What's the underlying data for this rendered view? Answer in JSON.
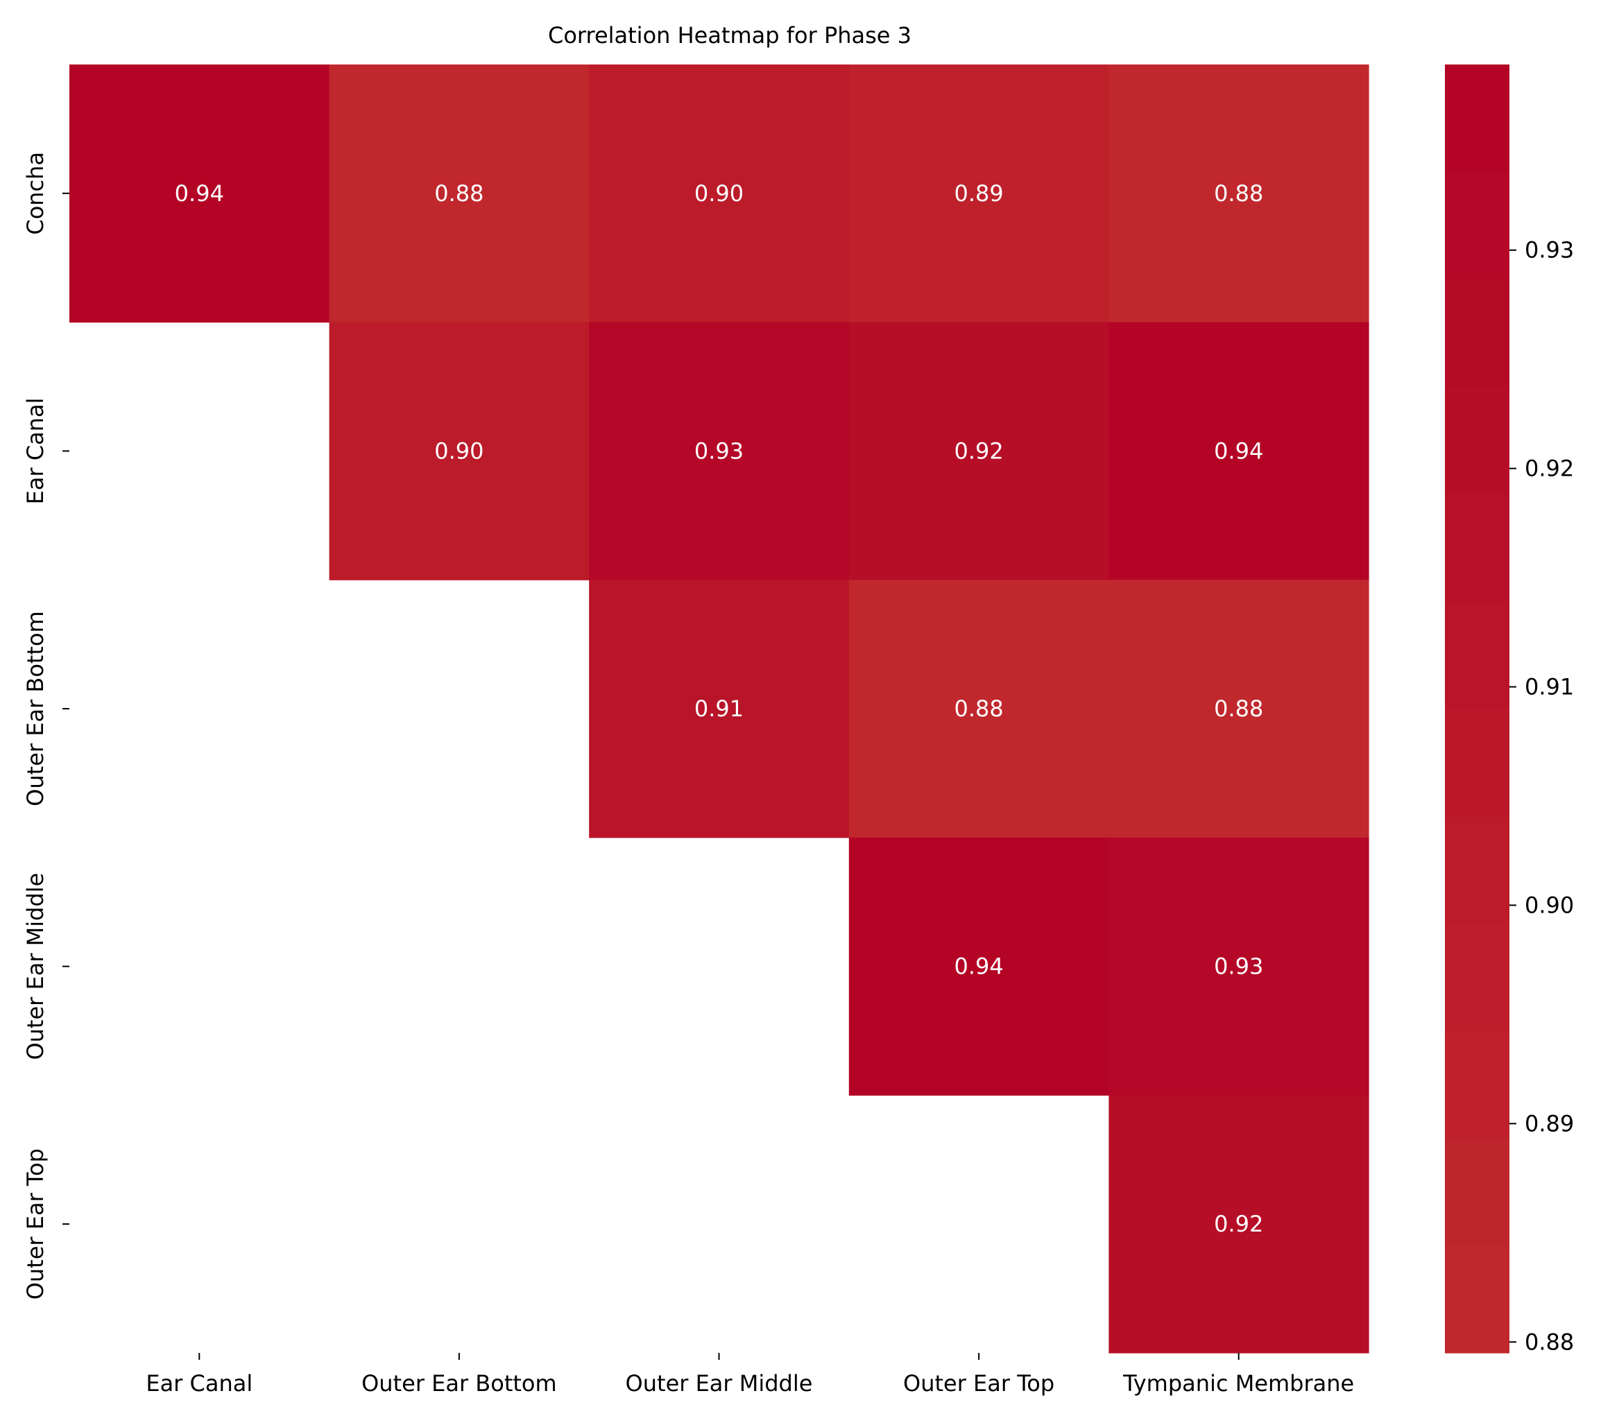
{
  "chart_data": {
    "type": "heatmap",
    "title": "Correlation Heatmap for Phase 3",
    "xlabel": "",
    "ylabel": "",
    "x_categories": [
      "Ear Canal",
      "Outer Ear Bottom",
      "Outer Ear Middle",
      "Outer Ear Top",
      "Tympanic Membrane"
    ],
    "y_categories": [
      "Concha",
      "Ear Canal",
      "Outer Ear Bottom",
      "Outer Ear Middle",
      "Outer Ear Top"
    ],
    "cells": [
      {
        "row": 0,
        "col": 0,
        "value": 0.94,
        "label": "0.94"
      },
      {
        "row": 0,
        "col": 1,
        "value": 0.88,
        "label": "0.88"
      },
      {
        "row": 0,
        "col": 2,
        "value": 0.9,
        "label": "0.90"
      },
      {
        "row": 0,
        "col": 3,
        "value": 0.89,
        "label": "0.89"
      },
      {
        "row": 0,
        "col": 4,
        "value": 0.88,
        "label": "0.88"
      },
      {
        "row": 1,
        "col": 1,
        "value": 0.9,
        "label": "0.90"
      },
      {
        "row": 1,
        "col": 2,
        "value": 0.93,
        "label": "0.93"
      },
      {
        "row": 1,
        "col": 3,
        "value": 0.92,
        "label": "0.92"
      },
      {
        "row": 1,
        "col": 4,
        "value": 0.94,
        "label": "0.94"
      },
      {
        "row": 2,
        "col": 2,
        "value": 0.91,
        "label": "0.91"
      },
      {
        "row": 2,
        "col": 3,
        "value": 0.88,
        "label": "0.88"
      },
      {
        "row": 2,
        "col": 4,
        "value": 0.88,
        "label": "0.88"
      },
      {
        "row": 3,
        "col": 3,
        "value": 0.94,
        "label": "0.94"
      },
      {
        "row": 3,
        "col": 4,
        "value": 0.93,
        "label": "0.93"
      },
      {
        "row": 4,
        "col": 4,
        "value": 0.92,
        "label": "0.92"
      }
    ],
    "colorbar": {
      "range": [
        0.8795,
        0.9385
      ],
      "ticks": [
        0.88,
        0.89,
        0.9,
        0.91,
        0.92,
        0.93
      ],
      "tick_labels": [
        "0.88",
        "0.89",
        "0.90",
        "0.91",
        "0.92",
        "0.93"
      ],
      "bands": 12,
      "color_low": "#c0282d",
      "color_high": "#b40426"
    },
    "annotation_color": "#ffffff",
    "grid": false,
    "legend": "colorbar-right"
  }
}
